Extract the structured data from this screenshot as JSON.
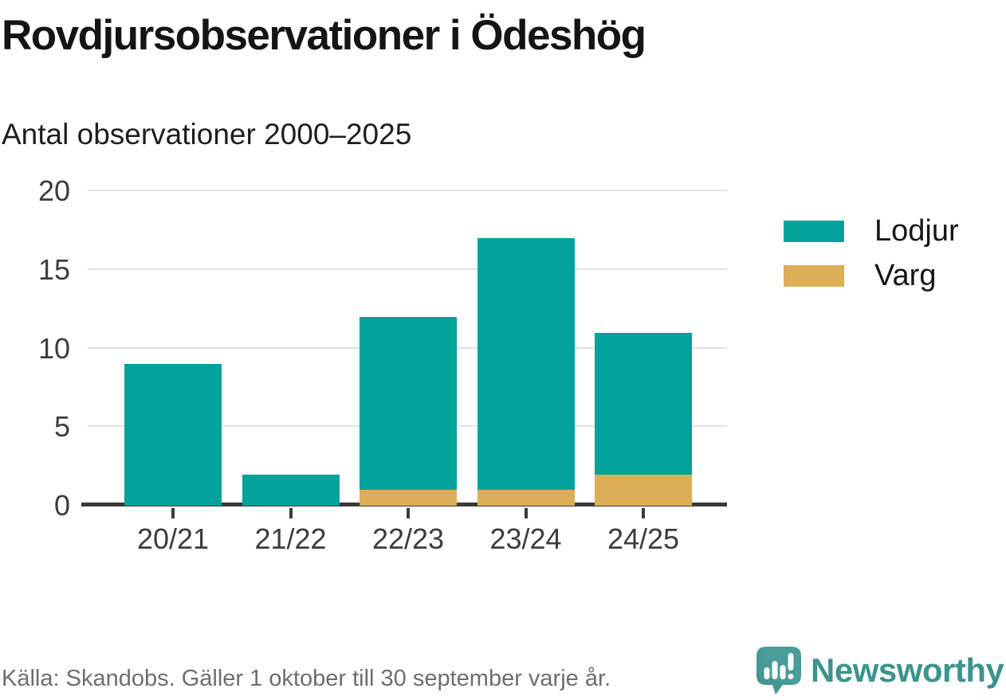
{
  "title": "Rovdjursobservationer i Ödeshög",
  "subtitle": "Antal observationer 2000–2025",
  "colors": {
    "lodjur": "#00a29b",
    "varg": "#dcae58",
    "axis": "#3a3a38",
    "grid": "#e1e1e1",
    "brand_teal": "#3c948e",
    "icon_teal": "#4a9d98",
    "icon_teal_dark": "#3f8e89"
  },
  "chart_data": {
    "type": "bar",
    "stacked": true,
    "title": "Rovdjursobservationer i Ödeshög",
    "subtitle": "Antal observationer 2000–2025",
    "categories": [
      "20/21",
      "21/22",
      "22/23",
      "23/24",
      "24/25"
    ],
    "series": [
      {
        "name": "Lodjur",
        "color_key": "lodjur",
        "values": [
          9,
          2,
          11,
          16,
          9
        ]
      },
      {
        "name": "Varg",
        "color_key": "varg",
        "values": [
          0,
          0,
          1,
          1,
          2
        ]
      }
    ],
    "stack_totals": [
      9,
      2,
      12,
      17,
      11
    ],
    "xlabel": "",
    "ylabel": "",
    "ylim": [
      0,
      20
    ],
    "yticks": [
      0,
      5,
      10,
      15,
      20
    ],
    "grid": "horizontal",
    "legend_position": "right"
  },
  "footer": {
    "source": "Källa: Skandobs. Gäller 1 oktober till 30 september varje år.",
    "brand_name": "Newsworthy"
  }
}
